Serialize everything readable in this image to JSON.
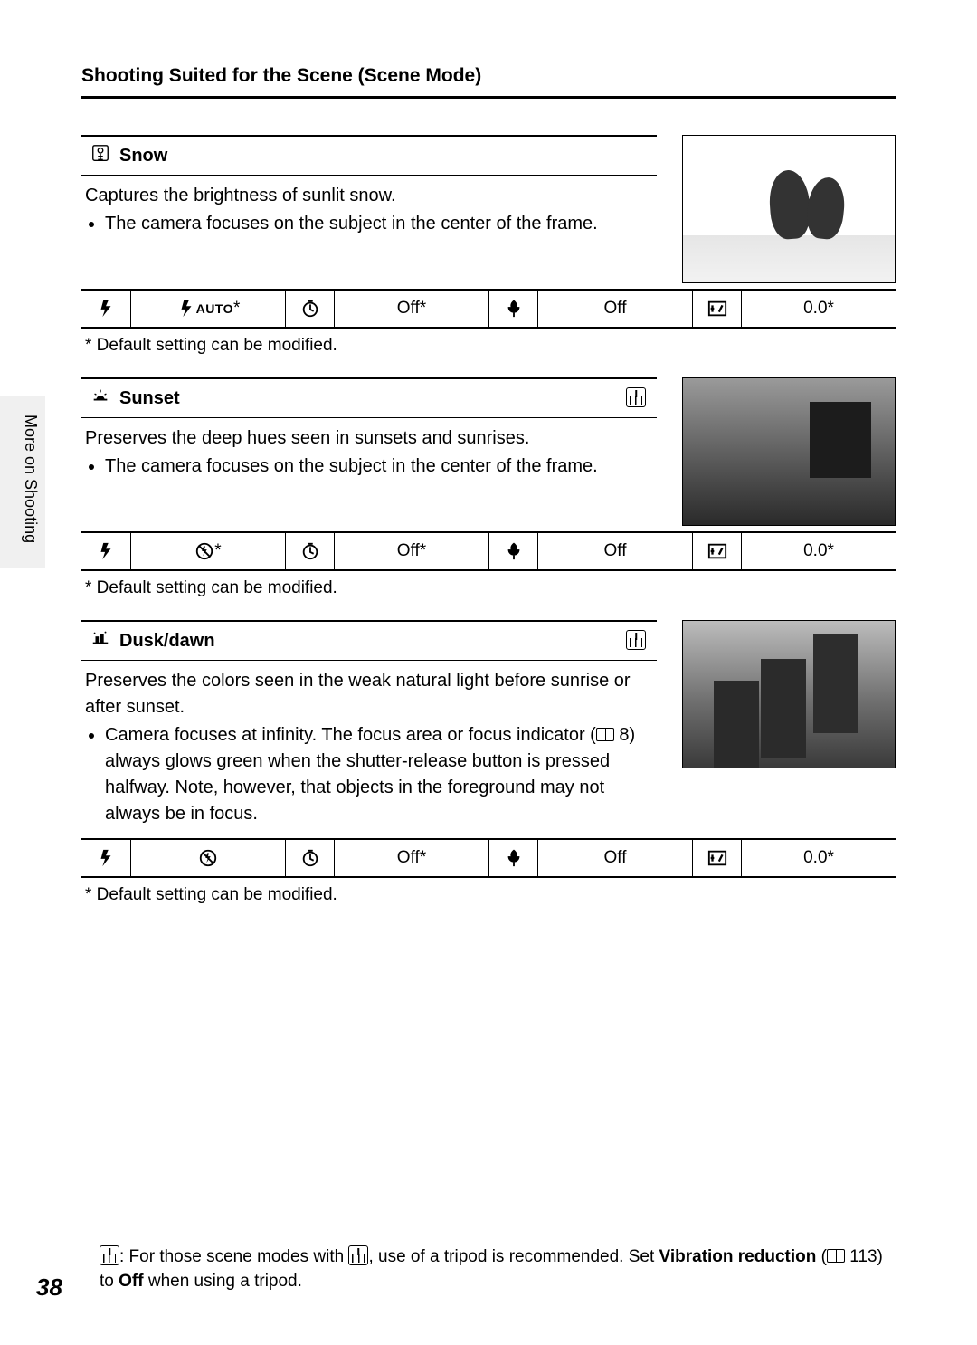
{
  "header": "Shooting Suited for the Scene (Scene Mode)",
  "side_tab": "More on Shooting",
  "page_number": "38",
  "footnote_text": "Default setting can be modified.",
  "footer": {
    "prefix": ": For those scene modes with ",
    "mid": ", use of a tripod is recommended. Set ",
    "bold1": "Vibration reduction",
    "tail1": " (",
    "pageref": "113",
    "tail2": ") to ",
    "bold2": "Off",
    "tail3": " when using a tripod."
  },
  "scenes": [
    {
      "icon": "snow-icon",
      "title": "Snow",
      "tripod": false,
      "desc": "Captures the brightness of sunlit snow.",
      "bullets": [
        "The camera focuses on the subject in the center of the frame."
      ],
      "thumb_class": "snow",
      "settings": {
        "flash": "⚡AUTO*",
        "timer": "Off*",
        "macro": "Off",
        "ev": "0.0*"
      }
    },
    {
      "icon": "sunset-icon",
      "title": "Sunset",
      "tripod": true,
      "desc": "Preserves the deep hues seen in sunsets and sunrises.",
      "bullets": [
        "The camera focuses on the subject in the center of the frame."
      ],
      "thumb_class": "sunset",
      "settings": {
        "flash": "⊘*",
        "timer": "Off*",
        "macro": "Off",
        "ev": "0.0*"
      }
    },
    {
      "icon": "dusk-icon",
      "title": "Dusk/dawn",
      "tripod": true,
      "desc": "Preserves the colors seen in the weak natural light before sunrise or after sunset.",
      "bullets_pre": "Camera focuses at infinity. The focus area or focus indicator (",
      "bullets_pageref": "8",
      "bullets_post": ") always glows green when the shutter-release button is pressed halfway. Note, however, that objects in the foreground may not always be in focus.",
      "thumb_class": "dusk",
      "settings": {
        "flash": "⊘",
        "timer": "Off*",
        "macro": "Off",
        "ev": "0.0*"
      }
    }
  ]
}
